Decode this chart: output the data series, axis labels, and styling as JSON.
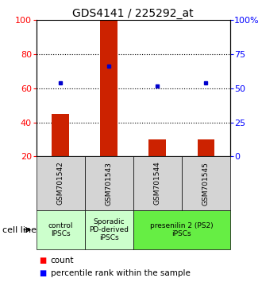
{
  "title": "GDS4141 / 225292_at",
  "samples": [
    "GSM701542",
    "GSM701543",
    "GSM701544",
    "GSM701545"
  ],
  "bar_values": [
    45,
    100,
    30,
    30
  ],
  "bar_bottom": [
    20,
    20,
    20,
    20
  ],
  "percentile_values": [
    63,
    73,
    61,
    63
  ],
  "ylim_left": [
    20,
    100
  ],
  "ylim_right": [
    0,
    100
  ],
  "yticks_left": [
    20,
    40,
    60,
    80,
    100
  ],
  "ytick_labels_left": [
    "20",
    "40",
    "60",
    "80",
    "100"
  ],
  "ytick_labels_right": [
    "0",
    "25",
    "50",
    "75",
    "100%"
  ],
  "bar_color": "#cc2200",
  "dot_color": "#0000cc",
  "grid_yticks": [
    40,
    60,
    80
  ],
  "cell_line_label": "cell line",
  "legend_count_label": "count",
  "legend_pct_label": "percentile rank within the sample",
  "title_fontsize": 10,
  "tick_fontsize": 8,
  "sample_fontsize": 6.5,
  "group_fontsize": 6.5,
  "legend_fontsize": 7.5,
  "group_info": [
    {
      "span": [
        0,
        1
      ],
      "label": "control\nIPSCs",
      "color": "#ccffcc"
    },
    {
      "span": [
        1,
        2
      ],
      "label": "Sporadic\nPD-derived\niPSCs",
      "color": "#ccffcc"
    },
    {
      "span": [
        2,
        4
      ],
      "label": "presenilin 2 (PS2)\niPSCs",
      "color": "#66ee44"
    }
  ]
}
